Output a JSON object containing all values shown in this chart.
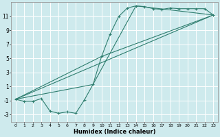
{
  "background_color": "#ceeaed",
  "grid_color": "#ffffff",
  "line_color": "#2e7d6e",
  "xlabel": "Humidex (Indice chaleur)",
  "xlim": [
    -0.5,
    23.5
  ],
  "ylim": [
    -4,
    13
  ],
  "yticks": [
    -3,
    -1,
    1,
    3,
    5,
    7,
    9,
    11
  ],
  "xticks": [
    0,
    1,
    2,
    3,
    4,
    5,
    6,
    7,
    8,
    9,
    10,
    11,
    12,
    13,
    14,
    15,
    16,
    17,
    18,
    19,
    20,
    21,
    22,
    23
  ],
  "curve_x": [
    0,
    1,
    2,
    3,
    4,
    5,
    6,
    7,
    8,
    9,
    10,
    11,
    12,
    13,
    14,
    15,
    16,
    17,
    18,
    19,
    20,
    21,
    22,
    23
  ],
  "curve_y": [
    -0.8,
    -1.1,
    -1.1,
    -0.7,
    -2.5,
    -2.8,
    -2.6,
    -2.8,
    -0.9,
    1.3,
    5.3,
    8.5,
    11.0,
    12.2,
    12.5,
    12.4,
    12.1,
    12.0,
    12.2,
    12.1,
    12.1,
    12.1,
    12.1,
    11.2
  ],
  "line1_x": [
    0,
    9,
    14,
    23
  ],
  "line1_y": [
    -0.8,
    1.3,
    12.5,
    11.2
  ],
  "line2_x": [
    0,
    10,
    23
  ],
  "line2_y": [
    -0.8,
    5.3,
    11.2
  ],
  "line3_x": [
    0,
    23
  ],
  "line3_y": [
    -0.8,
    11.2
  ]
}
